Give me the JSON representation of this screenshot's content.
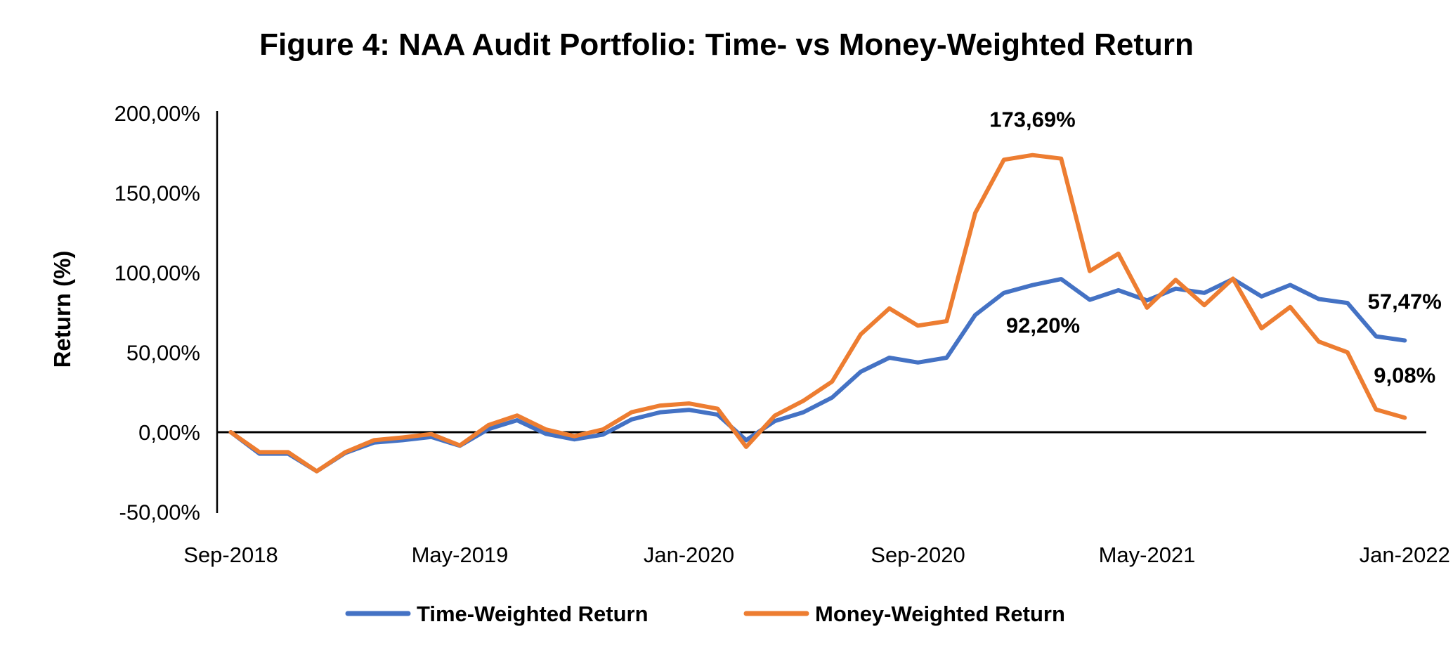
{
  "chart_data": {
    "type": "line",
    "title": "Figure 4: NAA Audit Portfolio: Time- vs Money-Weighted Return",
    "xlabel": "",
    "ylabel": "Return (%)",
    "ylim": [
      -50,
      200
    ],
    "y_ticks": [
      -50,
      0,
      50,
      100,
      150,
      200
    ],
    "y_tick_labels": [
      "-50,00%",
      "0,00%",
      "50,00%",
      "100,00%",
      "150,00%",
      "200,00%"
    ],
    "x_ticks": [
      {
        "index": 0,
        "label": "Sep-2018"
      },
      {
        "index": 8,
        "label": "May-2019"
      },
      {
        "index": 16,
        "label": "Jan-2020"
      },
      {
        "index": 24,
        "label": "Sep-2020"
      },
      {
        "index": 32,
        "label": "May-2021"
      },
      {
        "index": 41,
        "label": "Jan-2022"
      }
    ],
    "grid": false,
    "legend_position": "bottom",
    "series": [
      {
        "name": "Time-Weighted Return",
        "color": "#4472C4",
        "values": [
          0,
          -13.5,
          -13.5,
          -24.5,
          -13,
          -6.5,
          -5,
          -3,
          -8.5,
          2,
          7.5,
          -1,
          -4.5,
          -1.5,
          8,
          12.5,
          14,
          11,
          -5,
          7,
          12.5,
          21.7,
          37.9,
          46.7,
          43.7,
          46.7,
          73.5,
          87.3,
          92.2,
          96,
          83,
          89,
          82.6,
          90,
          87.3,
          96,
          85.1,
          92.3,
          83.5,
          81,
          60.1,
          57.47
        ],
        "data_labels": [
          {
            "index": 28,
            "text": "92,20%",
            "position": "below"
          },
          {
            "index": 41,
            "text": "57,47%",
            "position": "above"
          }
        ]
      },
      {
        "name": "Money-Weighted Return",
        "color": "#ED7D31",
        "values": [
          0,
          -12.5,
          -12.5,
          -24.5,
          -12.5,
          -5,
          -3.3,
          -1.2,
          -8.3,
          4.5,
          10.5,
          1.7,
          -2.5,
          1.7,
          12.5,
          16.7,
          18,
          14.7,
          -9.2,
          10.4,
          19.7,
          31.7,
          61.3,
          77.6,
          66.8,
          69.6,
          137.4,
          170.8,
          173.69,
          171.5,
          101,
          111.9,
          78,
          95.5,
          79.6,
          96.3,
          65.1,
          78.5,
          56.8,
          50.1,
          14.2,
          9.08
        ],
        "data_labels": [
          {
            "index": 28,
            "text": "173,69%",
            "position": "above"
          },
          {
            "index": 41,
            "text": "9,08%",
            "position": "above"
          }
        ]
      }
    ]
  }
}
